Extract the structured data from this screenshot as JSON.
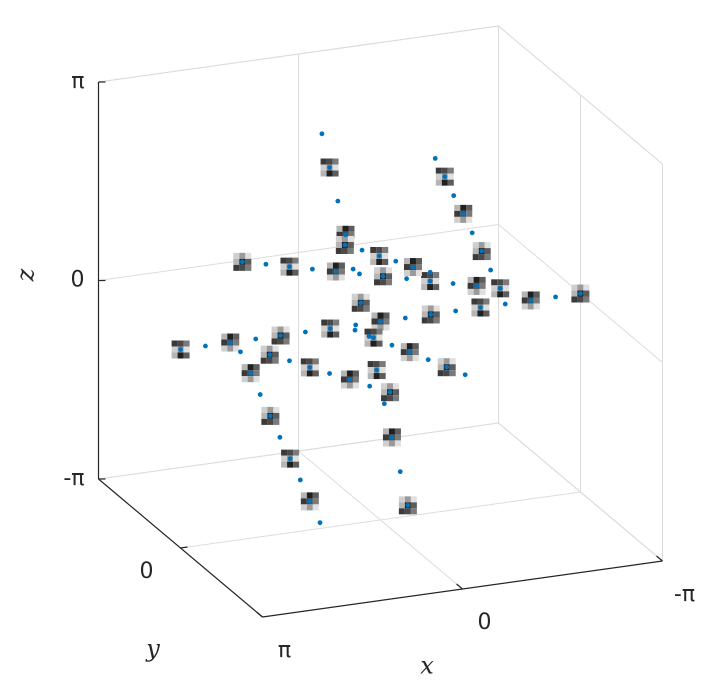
{
  "chart_data": {
    "type": "scatter3d",
    "x_label": "x",
    "y_label": "y",
    "z_label": "z",
    "xlim": [
      -3.14159,
      3.14159
    ],
    "ylim": [
      -3.14159,
      3.14159
    ],
    "zlim": [
      -3.14159,
      3.14159
    ],
    "xticks": [
      {
        "value": -3.14159,
        "label": "-π"
      },
      0,
      {
        "value": 3.14159,
        "label": "π"
      }
    ],
    "yticks": [
      0
    ],
    "zticks": [
      {
        "value": -3.14159,
        "label": "-π"
      },
      0,
      {
        "value": 3.14159,
        "label": "π"
      }
    ],
    "grid": true,
    "series": [
      {
        "color": "#0072bd",
        "x": [
          3.14,
          2.75,
          2.36,
          1.96,
          1.57,
          1.18,
          0.79,
          0.39,
          0,
          -0.39,
          -0.79,
          -1.18,
          -1.57,
          -1.96,
          -2.36,
          -2.75,
          -3.14,
          0.92,
          0.8,
          0.67,
          0.55,
          0.43,
          0.31,
          0.18,
          0.06,
          -0.06,
          -0.18,
          -0.31,
          -0.43,
          -0.86,
          -1.01,
          -1.15,
          -1.3,
          -1.44,
          -1.59,
          -1.73,
          -1.88,
          2.2,
          2.04,
          1.89,
          1.73,
          1.58,
          1.42,
          1.26,
          1.11,
          0.95,
          2.17,
          1.8,
          1.43,
          1.07,
          0.7,
          0.33,
          -0.04,
          -0.41,
          -0.78,
          -1.14,
          -1.51,
          -1.88,
          0.56,
          0.29,
          0.02,
          -0.24,
          -0.51,
          -0.78,
          1.74,
          1.43,
          1.11,
          0.8,
          0.48,
          0.17,
          -0.15,
          0.4,
          0.11,
          -0.18,
          -0.46,
          -0.75,
          -1.04,
          -1.33
        ],
        "y": [
          0,
          0,
          0,
          0,
          0,
          0,
          0,
          0,
          0,
          0,
          0,
          0,
          0,
          0,
          0,
          0,
          0,
          0,
          0,
          0,
          0,
          0,
          0,
          0,
          0,
          0,
          0,
          0,
          0,
          0,
          0,
          0,
          0,
          0,
          0,
          0,
          0,
          0,
          0,
          0,
          0,
          0,
          0,
          0,
          0,
          0,
          0,
          0,
          0,
          0,
          0,
          0,
          0,
          0,
          0,
          0,
          0,
          0,
          0,
          0,
          0,
          0,
          0,
          0,
          0,
          0,
          0,
          0,
          0,
          0,
          0,
          0,
          0,
          0,
          0,
          0,
          0,
          0
        ],
        "z": [
          0,
          0,
          0,
          0,
          0,
          0,
          0,
          0,
          0,
          0,
          0,
          0,
          0,
          0,
          0,
          0,
          0,
          3.1,
          2.55,
          2.0,
          1.45,
          0.89,
          0.34,
          -0.21,
          -0.76,
          -1.31,
          -1.86,
          -2.42,
          -2.97,
          2.46,
          2.15,
          1.83,
          1.52,
          1.2,
          0.89,
          0.57,
          0.26,
          -0.17,
          -0.53,
          -0.89,
          -1.25,
          -1.61,
          -1.97,
          -2.33,
          -2.69,
          -3.05,
          1.25,
          1.16,
          1.07,
          0.98,
          0.89,
          0.8,
          0.71,
          0.62,
          0.53,
          0.44,
          0.35,
          0.26,
          1.29,
          1.17,
          1.04,
          0.92,
          0.79,
          0.67,
          -0.28,
          -0.42,
          -0.57,
          -0.71,
          -0.85,
          -1.0,
          -1.14,
          -0.08,
          -0.24,
          -0.4,
          -0.55,
          -0.71,
          -0.87,
          -1.03
        ]
      }
    ]
  }
}
